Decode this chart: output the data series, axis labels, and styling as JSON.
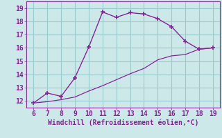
{
  "xlabel": "Windchill (Refroidissement éolien,°C)",
  "bg_color": "#cce8e8",
  "grid_color": "#99cccc",
  "line_color": "#882299",
  "xlim": [
    5.5,
    19.5
  ],
  "ylim": [
    11.5,
    19.5
  ],
  "xticks": [
    6,
    7,
    8,
    9,
    10,
    11,
    12,
    13,
    14,
    15,
    16,
    17,
    18,
    19
  ],
  "yticks": [
    12,
    13,
    14,
    15,
    16,
    17,
    18,
    19
  ],
  "line1_x": [
    6,
    7,
    8,
    9,
    10,
    11,
    12,
    13,
    14,
    15,
    16,
    17,
    18,
    19
  ],
  "line1_y": [
    11.85,
    12.6,
    12.35,
    13.75,
    16.05,
    18.7,
    18.3,
    18.65,
    18.55,
    18.2,
    17.6,
    16.5,
    15.9,
    16.0
  ],
  "line2_x": [
    6,
    7,
    8,
    9,
    10,
    11,
    12,
    13,
    14,
    15,
    16,
    17,
    18,
    19
  ],
  "line2_y": [
    11.85,
    11.95,
    12.1,
    12.3,
    12.75,
    13.15,
    13.6,
    14.05,
    14.45,
    15.1,
    15.4,
    15.5,
    15.9,
    16.0
  ],
  "tick_fontsize": 7,
  "xlabel_fontsize": 7
}
